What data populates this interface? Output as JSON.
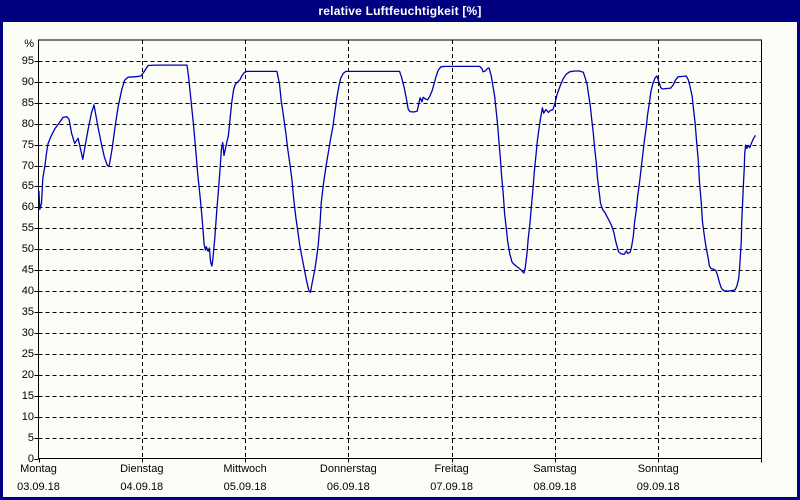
{
  "window": {
    "title": "relative Luftfeuchtigkeit [%]"
  },
  "colors": {
    "window_border": "#000080",
    "titlebar_bg": "#000080",
    "titlebar_text": "#FFFFFF",
    "plot_bg": "#FDFDF8",
    "grid": "#000000",
    "frame": "#000000",
    "line": "#0000B4",
    "label_text": "#000000"
  },
  "y_axis": {
    "unit_label": "%",
    "tick_labels": [
      "95",
      "90",
      "85",
      "80",
      "75",
      "70",
      "65",
      "60",
      "55",
      "50",
      "45",
      "40",
      "35",
      "30",
      "25",
      "20",
      "15",
      "10",
      "5",
      "0"
    ],
    "tick_values": [
      95,
      90,
      85,
      80,
      75,
      70,
      65,
      60,
      55,
      50,
      45,
      40,
      35,
      30,
      25,
      20,
      15,
      10,
      5,
      0
    ]
  },
  "x_axis": {
    "days": [
      {
        "name": "Montag",
        "date": "03.09.18"
      },
      {
        "name": "Dienstag",
        "date": "04.09.18"
      },
      {
        "name": "Mittwoch",
        "date": "05.09.18"
      },
      {
        "name": "Donnerstag",
        "date": "06.09.18"
      },
      {
        "name": "Freitag",
        "date": "07.09.18"
      },
      {
        "name": "Samstag",
        "date": "08.09.18"
      },
      {
        "name": "Sonntag",
        "date": "09.09.18"
      }
    ]
  },
  "chart_data": {
    "type": "line",
    "title": "relative Luftfeuchtigkeit [%]",
    "ylabel": "%",
    "ylim": [
      0,
      100
    ],
    "x_unit": "hours since Monday 00:00",
    "xlim": [
      0,
      168
    ],
    "grid": "dashed",
    "series": [
      {
        "name": "relative Luftfeuchtigkeit",
        "points": [
          [
            0.1,
            64
          ],
          [
            0.3,
            59.5
          ],
          [
            0.7,
            61
          ],
          [
            1.0,
            66.9
          ],
          [
            1.5,
            70.1
          ],
          [
            1.9,
            73.3
          ],
          [
            2.2,
            75.2
          ],
          [
            2.9,
            77
          ],
          [
            3.8,
            78.8
          ],
          [
            4.8,
            80.2
          ],
          [
            5.7,
            81.5
          ],
          [
            6.6,
            81.7
          ],
          [
            7.1,
            81
          ],
          [
            7.7,
            77.7
          ],
          [
            8.4,
            75.3
          ],
          [
            9.2,
            76.5
          ],
          [
            10.0,
            72.9
          ],
          [
            10.3,
            71.5
          ],
          [
            10.8,
            74.5
          ],
          [
            11.5,
            78.5
          ],
          [
            12.3,
            82.5
          ],
          [
            12.9,
            84.5
          ],
          [
            13.8,
            79.3
          ],
          [
            14.6,
            75.3
          ],
          [
            15.3,
            72.1
          ],
          [
            16.0,
            70
          ],
          [
            16.4,
            69.8
          ],
          [
            17.1,
            74
          ],
          [
            17.8,
            79.3
          ],
          [
            18.5,
            84
          ],
          [
            19.3,
            88
          ],
          [
            20.0,
            90.4
          ],
          [
            20.8,
            91.1
          ],
          [
            22.4,
            91.2
          ],
          [
            23.8,
            91.4
          ],
          [
            24.4,
            92.2
          ],
          [
            25.0,
            93.2
          ],
          [
            25.5,
            93.9
          ],
          [
            27.0,
            94
          ],
          [
            34.5,
            94
          ],
          [
            34.9,
            91
          ],
          [
            35.4,
            86
          ],
          [
            36.0,
            80
          ],
          [
            36.6,
            73
          ],
          [
            37.0,
            68
          ],
          [
            37.5,
            63
          ],
          [
            37.8,
            59.8
          ],
          [
            38.2,
            55
          ],
          [
            38.5,
            51
          ],
          [
            38.8,
            49.8
          ],
          [
            39.0,
            50.6
          ],
          [
            39.4,
            49.5
          ],
          [
            39.7,
            50.3
          ],
          [
            40.0,
            47
          ],
          [
            40.3,
            46
          ],
          [
            40.5,
            47.5
          ],
          [
            41.0,
            53
          ],
          [
            41.4,
            59
          ],
          [
            41.8,
            64
          ],
          [
            42.1,
            68
          ],
          [
            42.5,
            73.8
          ],
          [
            42.8,
            75.5
          ],
          [
            43.1,
            72.4
          ],
          [
            43.8,
            75.8
          ],
          [
            44.1,
            77
          ],
          [
            44.5,
            81
          ],
          [
            44.9,
            85
          ],
          [
            45.3,
            88
          ],
          [
            45.7,
            89.4
          ],
          [
            46.3,
            90
          ],
          [
            46.8,
            90.5
          ],
          [
            47.2,
            91.3
          ],
          [
            47.8,
            92.2
          ],
          [
            48.4,
            92.5
          ],
          [
            55.4,
            92.5
          ],
          [
            56.0,
            89.5
          ],
          [
            56.4,
            85.5
          ],
          [
            56.9,
            82
          ],
          [
            57.5,
            77.5
          ],
          [
            57.9,
            74
          ],
          [
            58.4,
            70.5
          ],
          [
            58.9,
            66.5
          ],
          [
            59.3,
            62
          ],
          [
            59.8,
            57.5
          ],
          [
            60.3,
            54
          ],
          [
            60.7,
            51
          ],
          [
            61.3,
            47.7
          ],
          [
            61.9,
            44.5
          ],
          [
            62.4,
            42
          ],
          [
            62.8,
            40.2
          ],
          [
            63.2,
            39.7
          ],
          [
            63.6,
            42
          ],
          [
            64.2,
            45.1
          ],
          [
            64.7,
            48.5
          ],
          [
            65.0,
            51
          ],
          [
            65.4,
            56
          ],
          [
            65.7,
            61
          ],
          [
            66.2,
            65.5
          ],
          [
            66.8,
            69.8
          ],
          [
            67.4,
            73.5
          ],
          [
            67.9,
            76.5
          ],
          [
            68.4,
            79.3
          ],
          [
            68.9,
            83
          ],
          [
            69.3,
            86
          ],
          [
            69.8,
            89
          ],
          [
            70.2,
            90.8
          ],
          [
            70.8,
            92
          ],
          [
            71.4,
            92.5
          ],
          [
            74.6,
            92.5
          ],
          [
            79.3,
            92.5
          ],
          [
            83.9,
            92.5
          ],
          [
            84.4,
            91
          ],
          [
            85.0,
            88.5
          ],
          [
            85.5,
            85.8
          ],
          [
            85.9,
            83.5
          ],
          [
            86.3,
            82.9
          ],
          [
            87.2,
            82.8
          ],
          [
            88.0,
            83
          ],
          [
            88.5,
            85.5
          ],
          [
            88.7,
            86.2
          ],
          [
            89.1,
            85.2
          ],
          [
            89.4,
            86.3
          ],
          [
            89.9,
            85.9
          ],
          [
            90.4,
            85.7
          ],
          [
            90.9,
            86.5
          ],
          [
            91.5,
            88
          ],
          [
            92.0,
            89.8
          ],
          [
            92.4,
            91.4
          ],
          [
            92.9,
            92.8
          ],
          [
            93.5,
            93.6
          ],
          [
            94.4,
            93.7
          ],
          [
            98.0,
            93.7
          ],
          [
            102.5,
            93.7
          ],
          [
            103.0,
            93.2
          ],
          [
            103.3,
            92.4
          ],
          [
            103.8,
            92.6
          ],
          [
            104.3,
            93.2
          ],
          [
            104.7,
            93.3
          ],
          [
            105.2,
            91.5
          ],
          [
            105.5,
            89.6
          ],
          [
            106.0,
            86.5
          ],
          [
            106.3,
            83.5
          ],
          [
            106.7,
            79.5
          ],
          [
            107.0,
            75.5
          ],
          [
            107.3,
            72
          ],
          [
            107.6,
            67.5
          ],
          [
            108.0,
            63
          ],
          [
            108.3,
            58.5
          ],
          [
            108.7,
            55
          ],
          [
            109.0,
            52
          ],
          [
            109.5,
            49
          ],
          [
            110.0,
            47
          ],
          [
            110.3,
            46.6
          ],
          [
            111.1,
            45.9
          ],
          [
            112.1,
            45.1
          ],
          [
            112.8,
            44.3
          ],
          [
            113.1,
            45.5
          ],
          [
            113.5,
            49
          ],
          [
            113.8,
            52.5
          ],
          [
            114.2,
            56.3
          ],
          [
            114.5,
            60
          ],
          [
            114.9,
            64.5
          ],
          [
            115.2,
            68.5
          ],
          [
            115.6,
            72.5
          ],
          [
            115.9,
            75.8
          ],
          [
            116.3,
            78.8
          ],
          [
            116.7,
            81.5
          ],
          [
            117.1,
            83.8
          ],
          [
            117.4,
            82.5
          ],
          [
            117.9,
            83.4
          ],
          [
            118.5,
            82.7
          ],
          [
            119.0,
            83.2
          ],
          [
            119.5,
            83.3
          ],
          [
            120.0,
            84.8
          ],
          [
            120.5,
            87
          ],
          [
            121.2,
            89
          ],
          [
            121.9,
            90.7
          ],
          [
            122.6,
            91.8
          ],
          [
            123.4,
            92.4
          ],
          [
            124.6,
            92.6
          ],
          [
            125.7,
            92.6
          ],
          [
            126.6,
            92.3
          ],
          [
            127.0,
            91
          ],
          [
            127.5,
            89.3
          ],
          [
            127.8,
            87
          ],
          [
            128.2,
            84.5
          ],
          [
            128.5,
            81.5
          ],
          [
            128.9,
            78
          ],
          [
            129.2,
            74.5
          ],
          [
            129.6,
            70.8
          ],
          [
            129.9,
            67
          ],
          [
            130.3,
            63.5
          ],
          [
            130.6,
            61
          ],
          [
            131.1,
            59.5
          ],
          [
            131.7,
            58.6
          ],
          [
            132.4,
            57.2
          ],
          [
            133.1,
            55.8
          ],
          [
            133.7,
            54
          ],
          [
            134.1,
            52
          ],
          [
            134.5,
            50.5
          ],
          [
            134.8,
            49.4
          ],
          [
            135.4,
            48.9
          ],
          [
            136.1,
            48.8
          ],
          [
            136.6,
            49.6
          ],
          [
            136.9,
            49
          ],
          [
            137.5,
            49.3
          ],
          [
            137.8,
            50.5
          ],
          [
            138.2,
            53.1
          ],
          [
            138.5,
            56.3
          ],
          [
            138.9,
            59.4
          ],
          [
            139.2,
            62.6
          ],
          [
            139.6,
            65.5
          ],
          [
            140.0,
            69
          ],
          [
            140.4,
            72.5
          ],
          [
            140.8,
            76
          ],
          [
            141.2,
            79
          ],
          [
            141.5,
            82
          ],
          [
            142.0,
            85.3
          ],
          [
            142.3,
            87.7
          ],
          [
            142.8,
            89.8
          ],
          [
            143.3,
            91
          ],
          [
            143.7,
            91.4
          ],
          [
            144.1,
            90.2
          ],
          [
            144.6,
            88.6
          ],
          [
            145.0,
            88.3
          ],
          [
            146.0,
            88.4
          ],
          [
            146.9,
            88.5
          ],
          [
            147.5,
            89.3
          ],
          [
            148.0,
            90.4
          ],
          [
            148.6,
            91.2
          ],
          [
            149.7,
            91.3
          ],
          [
            150.5,
            91.4
          ],
          [
            151.0,
            90.5
          ],
          [
            151.4,
            88.8
          ],
          [
            151.9,
            86.5
          ],
          [
            152.2,
            83.5
          ],
          [
            152.6,
            80
          ],
          [
            152.9,
            76
          ],
          [
            153.3,
            71.5
          ],
          [
            153.6,
            66
          ],
          [
            154.0,
            61
          ],
          [
            154.3,
            56.5
          ],
          [
            154.8,
            52.6
          ],
          [
            155.2,
            50
          ],
          [
            155.6,
            48
          ],
          [
            155.9,
            46
          ],
          [
            156.3,
            45.4
          ],
          [
            156.9,
            45.2
          ],
          [
            157.4,
            44.9
          ],
          [
            157.8,
            43.7
          ],
          [
            158.1,
            42.5
          ],
          [
            158.5,
            41.2
          ],
          [
            158.8,
            40.5
          ],
          [
            159.3,
            40.1
          ],
          [
            160.1,
            40
          ],
          [
            161.0,
            40.1
          ],
          [
            161.9,
            40.3
          ],
          [
            162.3,
            41.3
          ],
          [
            162.7,
            43
          ],
          [
            162.9,
            45.5
          ],
          [
            163.1,
            48.5
          ],
          [
            163.3,
            52
          ],
          [
            163.4,
            56.5
          ],
          [
            163.6,
            61
          ],
          [
            163.8,
            65.5
          ],
          [
            164.0,
            69.5
          ],
          [
            164.1,
            72.8
          ],
          [
            164.3,
            74.9
          ],
          [
            164.6,
            74.1
          ],
          [
            164.9,
            74.8
          ],
          [
            165.3,
            74.3
          ],
          [
            165.6,
            75.2
          ],
          [
            166.1,
            76.4
          ],
          [
            166.6,
            77.2
          ]
        ]
      }
    ]
  }
}
